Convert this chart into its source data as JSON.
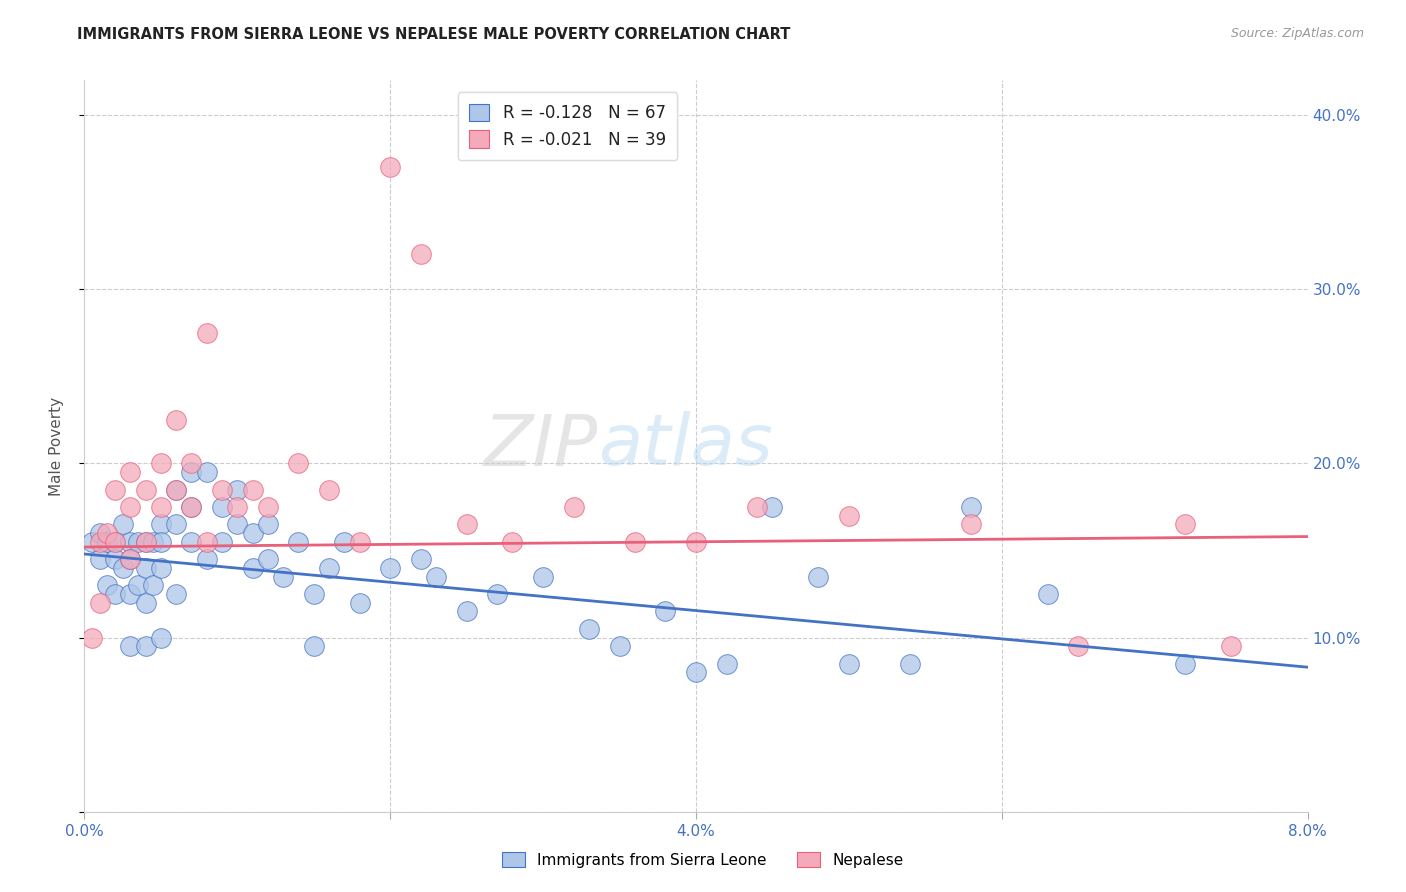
{
  "title": "IMMIGRANTS FROM SIERRA LEONE VS NEPALESE MALE POVERTY CORRELATION CHART",
  "source": "Source: ZipAtlas.com",
  "ylabel": "Male Poverty",
  "legend_label_1": "Immigrants from Sierra Leone",
  "legend_label_2": "Nepalese",
  "legend_r1": "R = -0.128",
  "legend_n1": "N = 67",
  "legend_r2": "R = -0.021",
  "legend_n2": "N = 39",
  "xlim": [
    0.0,
    0.08
  ],
  "ylim": [
    0.0,
    0.42
  ],
  "xticks": [
    0.0,
    0.02,
    0.04,
    0.06,
    0.08
  ],
  "yticks": [
    0.0,
    0.1,
    0.2,
    0.3,
    0.4
  ],
  "xticklabels": [
    "0.0%",
    "",
    "4.0%",
    "",
    "8.0%"
  ],
  "yticklabels_right": [
    "",
    "10.0%",
    "20.0%",
    "30.0%",
    "40.0%"
  ],
  "color_blue": "#AEC6E8",
  "color_pink": "#F4AABB",
  "line_blue": "#4472C4",
  "line_pink": "#E8607A",
  "background": "#FFFFFF",
  "blue_x": [
    0.0005,
    0.001,
    0.001,
    0.0015,
    0.0015,
    0.002,
    0.002,
    0.002,
    0.0025,
    0.0025,
    0.003,
    0.003,
    0.003,
    0.003,
    0.0035,
    0.0035,
    0.004,
    0.004,
    0.004,
    0.004,
    0.0045,
    0.0045,
    0.005,
    0.005,
    0.005,
    0.005,
    0.006,
    0.006,
    0.006,
    0.007,
    0.007,
    0.007,
    0.008,
    0.008,
    0.009,
    0.009,
    0.01,
    0.01,
    0.011,
    0.011,
    0.012,
    0.012,
    0.013,
    0.014,
    0.015,
    0.015,
    0.016,
    0.017,
    0.018,
    0.02,
    0.022,
    0.023,
    0.025,
    0.027,
    0.03,
    0.033,
    0.035,
    0.038,
    0.04,
    0.042,
    0.045,
    0.048,
    0.05,
    0.054,
    0.058,
    0.063,
    0.072
  ],
  "blue_y": [
    0.155,
    0.16,
    0.145,
    0.155,
    0.13,
    0.155,
    0.145,
    0.125,
    0.165,
    0.14,
    0.155,
    0.145,
    0.125,
    0.095,
    0.155,
    0.13,
    0.155,
    0.14,
    0.12,
    0.095,
    0.155,
    0.13,
    0.165,
    0.155,
    0.14,
    0.1,
    0.185,
    0.165,
    0.125,
    0.195,
    0.175,
    0.155,
    0.195,
    0.145,
    0.175,
    0.155,
    0.185,
    0.165,
    0.16,
    0.14,
    0.165,
    0.145,
    0.135,
    0.155,
    0.125,
    0.095,
    0.14,
    0.155,
    0.12,
    0.14,
    0.145,
    0.135,
    0.115,
    0.125,
    0.135,
    0.105,
    0.095,
    0.115,
    0.08,
    0.085,
    0.175,
    0.135,
    0.085,
    0.085,
    0.175,
    0.125,
    0.085
  ],
  "pink_x": [
    0.0005,
    0.001,
    0.001,
    0.0015,
    0.002,
    0.002,
    0.003,
    0.003,
    0.003,
    0.004,
    0.004,
    0.005,
    0.005,
    0.006,
    0.006,
    0.007,
    0.007,
    0.008,
    0.008,
    0.009,
    0.01,
    0.011,
    0.012,
    0.014,
    0.016,
    0.018,
    0.02,
    0.022,
    0.025,
    0.028,
    0.032,
    0.036,
    0.04,
    0.044,
    0.05,
    0.058,
    0.065,
    0.072,
    0.075
  ],
  "pink_y": [
    0.1,
    0.155,
    0.12,
    0.16,
    0.185,
    0.155,
    0.195,
    0.175,
    0.145,
    0.185,
    0.155,
    0.2,
    0.175,
    0.225,
    0.185,
    0.2,
    0.175,
    0.275,
    0.155,
    0.185,
    0.175,
    0.185,
    0.175,
    0.2,
    0.185,
    0.155,
    0.37,
    0.32,
    0.165,
    0.155,
    0.175,
    0.155,
    0.155,
    0.175,
    0.17,
    0.165,
    0.095,
    0.165,
    0.095
  ],
  "blue_trend_x0": 0.0,
  "blue_trend_y0": 0.148,
  "blue_trend_x1": 0.08,
  "blue_trend_y1": 0.083,
  "pink_trend_x0": 0.0,
  "pink_trend_y0": 0.152,
  "pink_trend_x1": 0.08,
  "pink_trend_y1": 0.158
}
